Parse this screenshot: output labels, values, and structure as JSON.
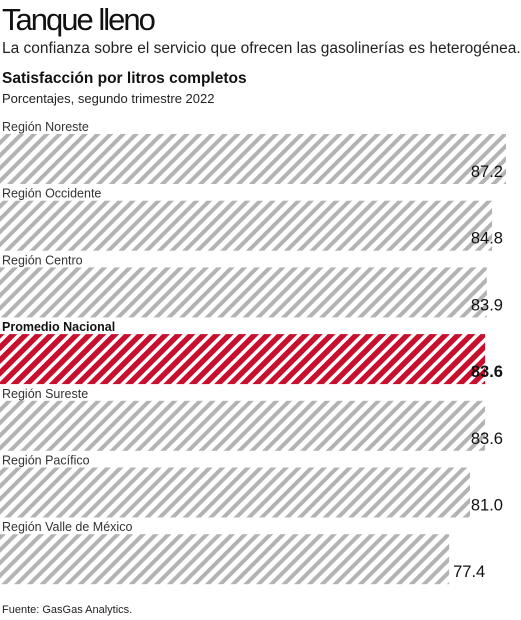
{
  "header": {
    "title": "Tanque lleno",
    "subtitle": "La confianza sobre el servicio que ofrecen las gasolinerías es heterogénea."
  },
  "chart_data": {
    "type": "bar",
    "orientation": "horizontal",
    "title": "Satisfacción por litros completos",
    "subtitle": "Porcentajes, segundo trimestre 2022",
    "categories": [
      "Región Noreste",
      "Región Occidente",
      "Región Centro",
      "Promedio Nacional",
      "Región Sureste",
      "Región Pacífico",
      "Región Valle de México"
    ],
    "values": [
      87.2,
      84.8,
      83.9,
      83.6,
      83.6,
      81.0,
      77.4
    ],
    "value_labels": [
      "87.2",
      "84.8",
      "83.9",
      "83.6",
      "83.6",
      "81.0",
      "77.4"
    ],
    "highlight": "Promedio Nacional",
    "colors": {
      "bar": "#b3b3b3",
      "highlight": "#c8102e"
    },
    "grid": false,
    "legend": "none"
  },
  "footer": {
    "source": "Fuente: GasGas Analytics."
  }
}
